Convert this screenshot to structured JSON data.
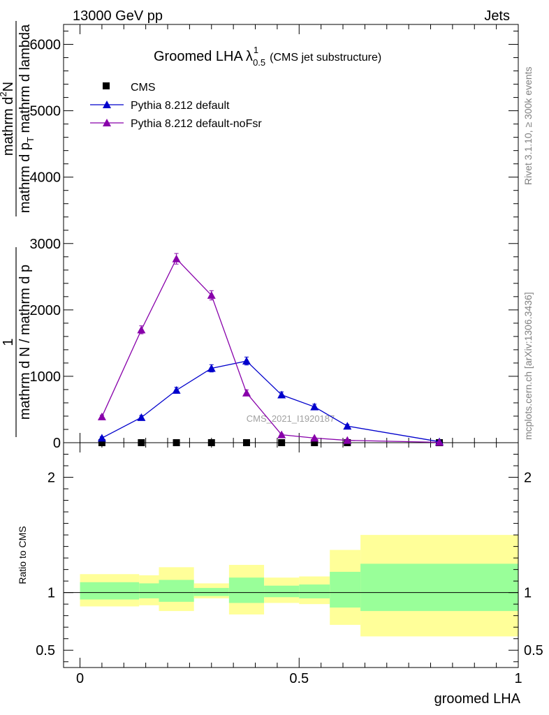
{
  "header": {
    "left": "13000 GeV pp",
    "right": "Jets"
  },
  "side": {
    "rivet": "Rivet 3.1.10, ≥ 300k events",
    "mcplots": "mcplots.cern.ch [arXiv:1306.3436]"
  },
  "watermark": "CMS_2021_I1920187",
  "chart_data": {
    "type": "line",
    "title_main": "Groomed LHA",
    "title_symbol": "λ",
    "title_sup": "1",
    "title_sub": "0.5",
    "title_note": "(CMS jet substructure)",
    "ylabel_top": "1",
    "ylabel_den_top": "mathrm d N / mathrm d p",
    "ylabel_num": "mathrm d",
    "ylabel_num_sup": "2",
    "ylabel_num_tail": "N",
    "ylabel_den_bottom": "mathrm d p",
    "ylabel_den_bottom_sub": "T",
    "ylabel_den_bottom_tail": " mathrm d lambda",
    "xlabel": "groomed LHA",
    "ratio_ylabel": "Ratio to CMS",
    "xlim": [
      -0.0375,
      1.0
    ],
    "ylim": [
      0,
      6300
    ],
    "ratio_ylim": [
      0.35,
      2.3
    ],
    "x_ticks": [
      {
        "v": 0,
        "label": "0"
      },
      {
        "v": 0.5,
        "label": "0.5"
      },
      {
        "v": 1,
        "label": "1"
      }
    ],
    "y_ticks": [
      {
        "v": 0,
        "label": "0"
      },
      {
        "v": 1000,
        "label": "1000"
      },
      {
        "v": 2000,
        "label": "2000"
      },
      {
        "v": 3000,
        "label": "3000"
      },
      {
        "v": 4000,
        "label": "4000"
      },
      {
        "v": 5000,
        "label": "5000"
      },
      {
        "v": 6000,
        "label": "6000"
      }
    ],
    "ratio_ticks": [
      {
        "v": 0.5,
        "label": "0.5"
      },
      {
        "v": 1,
        "label": "1"
      },
      {
        "v": 2,
        "label": "2"
      }
    ],
    "series": [
      {
        "name": "CMS",
        "color": "#000000",
        "marker": "square",
        "x": [
          0.05,
          0.14,
          0.22,
          0.3,
          0.38,
          0.46,
          0.535,
          0.61,
          0.82
        ],
        "y": [
          0,
          0,
          0,
          0,
          0,
          0,
          0,
          0,
          0
        ]
      },
      {
        "name": "Pythia 8.212 default",
        "color": "#0000cc",
        "marker": "triangle",
        "x": [
          0.05,
          0.14,
          0.22,
          0.3,
          0.38,
          0.46,
          0.535,
          0.61,
          0.82
        ],
        "y": [
          70,
          380,
          790,
          1120,
          1230,
          720,
          540,
          250,
          15
        ],
        "err": [
          20,
          30,
          45,
          55,
          60,
          45,
          40,
          25,
          5
        ]
      },
      {
        "name": "Pythia 8.212 default-noFsr",
        "color": "#8800aa",
        "marker": "triangle",
        "x": [
          0.05,
          0.14,
          0.22,
          0.3,
          0.38,
          0.46,
          0.535,
          0.61,
          0.82
        ],
        "y": [
          390,
          1700,
          2770,
          2220,
          750,
          120,
          70,
          35,
          5
        ],
        "err": [
          25,
          60,
          80,
          70,
          45,
          15,
          10,
          8,
          3
        ]
      }
    ],
    "ratio_bands": [
      {
        "x0": 0.0,
        "x1": 0.135,
        "green": [
          0.94,
          1.09
        ],
        "yellow": [
          0.88,
          1.16
        ]
      },
      {
        "x0": 0.135,
        "x1": 0.18,
        "green": [
          0.95,
          1.08
        ],
        "yellow": [
          0.89,
          1.15
        ]
      },
      {
        "x0": 0.18,
        "x1": 0.26,
        "green": [
          0.92,
          1.11
        ],
        "yellow": [
          0.84,
          1.22
        ]
      },
      {
        "x0": 0.26,
        "x1": 0.34,
        "green": [
          0.97,
          1.04
        ],
        "yellow": [
          0.95,
          1.08
        ]
      },
      {
        "x0": 0.34,
        "x1": 0.42,
        "green": [
          0.91,
          1.13
        ],
        "yellow": [
          0.81,
          1.24
        ]
      },
      {
        "x0": 0.42,
        "x1": 0.5,
        "green": [
          0.96,
          1.06
        ],
        "yellow": [
          0.91,
          1.13
        ]
      },
      {
        "x0": 0.5,
        "x1": 0.57,
        "green": [
          0.95,
          1.07
        ],
        "yellow": [
          0.9,
          1.14
        ]
      },
      {
        "x0": 0.57,
        "x1": 0.64,
        "green": [
          0.87,
          1.18
        ],
        "yellow": [
          0.72,
          1.37
        ]
      },
      {
        "x0": 0.64,
        "x1": 1.0,
        "green": [
          0.84,
          1.25
        ],
        "yellow": [
          0.62,
          1.5
        ]
      }
    ],
    "band_colors": {
      "green": "#99ff99",
      "yellow": "#ffff99"
    }
  }
}
